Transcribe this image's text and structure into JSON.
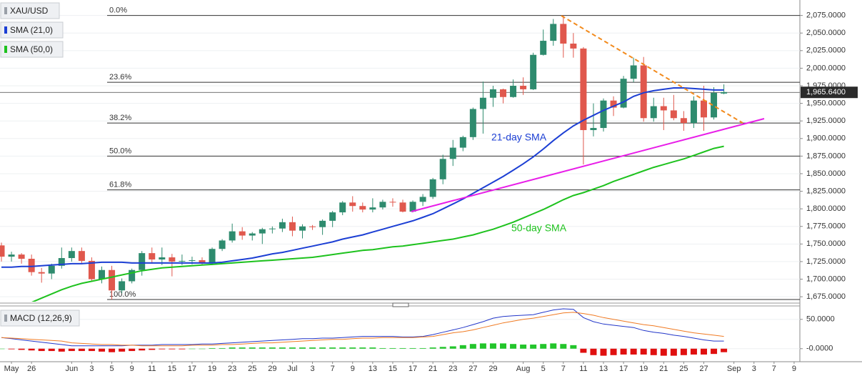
{
  "legend_items": [
    "XAU/USD",
    "SMA (21,0)",
    "SMA (50,0)"
  ],
  "chart_data": [
    {
      "type": "candlestick",
      "categories": [
        null,
        "May",
        null,
        "26",
        null,
        null,
        null,
        "Jun",
        null,
        "3",
        null,
        "5",
        null,
        "9",
        null,
        "11",
        null,
        "15",
        null,
        "17",
        null,
        "19",
        null,
        "23",
        null,
        "25",
        null,
        "29",
        null,
        "Jul",
        null,
        "3",
        null,
        "7",
        null,
        "9",
        null,
        "13",
        null,
        "15",
        null,
        "17",
        null,
        "21",
        null,
        "23",
        null,
        "27",
        null,
        "29",
        null,
        null,
        "Aug",
        null,
        "5",
        null,
        "7",
        null,
        "11",
        null,
        "13",
        null,
        "17",
        null,
        "19",
        null,
        "21",
        null,
        "25",
        null,
        "27",
        null,
        null,
        "Sep",
        null,
        "3",
        null,
        "7",
        null,
        "9"
      ],
      "open": [
        1748,
        1732,
        1735,
        1729,
        1710,
        1708,
        1719,
        1730,
        1740,
        1726,
        1700,
        1713,
        1684,
        1697,
        1713,
        1737,
        1728,
        1731,
        1725,
        1726,
        1727,
        1723,
        1743,
        1755,
        1768,
        1762,
        1765,
        1771,
        1772,
        1781,
        1769,
        1775,
        1774,
        1783,
        1795,
        1809,
        1804,
        1799,
        1802,
        1810,
        1809,
        1796,
        1810,
        1817,
        1842,
        1871,
        1887,
        1902,
        1942,
        1958,
        1970,
        1959,
        1975,
        1970,
        2019,
        2039,
        2063,
        2035,
        2028,
        1912,
        1915,
        1954,
        1944,
        1985,
        2004,
        1929,
        1946,
        1940,
        1929,
        1922,
        1954,
        1930,
        1964,
        null,
        null,
        null,
        null,
        null,
        null,
        null
      ],
      "high": [
        1752,
        1739,
        1737,
        1735,
        1716,
        1722,
        1745,
        1745,
        1745,
        1731,
        1718,
        1719,
        1701,
        1715,
        1740,
        1745,
        1745,
        1736,
        1735,
        1732,
        1731,
        1745,
        1757,
        1779,
        1774,
        1767,
        1773,
        1775,
        1786,
        1789,
        1778,
        1777,
        1785,
        1797,
        1811,
        1818,
        1809,
        1815,
        1813,
        1815,
        1813,
        1812,
        1821,
        1844,
        1877,
        1898,
        1904,
        1944,
        1981,
        1975,
        1971,
        1984,
        1987,
        2022,
        2055,
        2070,
        2075,
        2050,
        2030,
        1950,
        1957,
        1960,
        1989,
        2015,
        2016,
        1958,
        1958,
        1962,
        1939,
        1960,
        1975,
        1973,
        1977,
        null,
        null,
        null,
        null,
        null,
        null,
        null
      ],
      "low": [
        1725,
        1725,
        1722,
        1705,
        1695,
        1700,
        1715,
        1725,
        1723,
        1697,
        1694,
        1671,
        1680,
        1694,
        1705,
        1722,
        1720,
        1704,
        1720,
        1721,
        1720,
        1720,
        1740,
        1752,
        1756,
        1755,
        1750,
        1765,
        1767,
        1761,
        1758,
        1770,
        1763,
        1774,
        1791,
        1796,
        1795,
        1795,
        1799,
        1803,
        1795,
        1795,
        1804,
        1814,
        1835,
        1861,
        1882,
        1898,
        1907,
        1945,
        1950,
        1958,
        1962,
        1969,
        2018,
        2032,
        2015,
        2015,
        1863,
        1903,
        1910,
        1932,
        1943,
        1980,
        1924,
        1924,
        1912,
        1926,
        1911,
        1915,
        1911,
        1927,
        1963,
        null,
        null,
        null,
        null,
        null,
        null,
        null
      ],
      "close": [
        1732,
        1735,
        1729,
        1710,
        1708,
        1719,
        1730,
        1740,
        1726,
        1700,
        1713,
        1684,
        1697,
        1713,
        1737,
        1728,
        1731,
        1725,
        1726,
        1727,
        1723,
        1743,
        1755,
        1768,
        1762,
        1765,
        1771,
        1772,
        1781,
        1769,
        1775,
        1774,
        1783,
        1795,
        1809,
        1804,
        1799,
        1802,
        1810,
        1809,
        1796,
        1810,
        1817,
        1842,
        1871,
        1887,
        1902,
        1942,
        1958,
        1970,
        1959,
        1975,
        1970,
        2019,
        2039,
        2063,
        2035,
        2028,
        1912,
        1915,
        1954,
        1944,
        1985,
        2004,
        1929,
        1946,
        1940,
        1929,
        1922,
        1954,
        1930,
        1965,
        1966,
        null,
        null,
        null,
        null,
        null,
        null,
        null
      ],
      "up_color": "#2e8b6e",
      "down_color": "#e0584d",
      "ylim": [
        1668,
        2097
      ],
      "yticks": [
        {
          "value": 2075,
          "label": "2,075.0000"
        },
        {
          "value": 2050,
          "label": "2,050.0000"
        },
        {
          "value": 2025,
          "label": "2,025.0000"
        },
        {
          "value": 2000,
          "label": "2,000.0000"
        },
        {
          "value": 1975,
          "label": "1,975.0000"
        },
        {
          "value": 1950,
          "label": "1,950.0000"
        },
        {
          "value": 1925,
          "label": "1,925.0000"
        },
        {
          "value": 1900,
          "label": "1,900.0000"
        },
        {
          "value": 1875,
          "label": "1,875.0000"
        },
        {
          "value": 1850,
          "label": "1,850.0000"
        },
        {
          "value": 1825,
          "label": "1,825.0000"
        },
        {
          "value": 1800,
          "label": "1,800.0000"
        },
        {
          "value": 1775,
          "label": "1,775.0000"
        },
        {
          "value": 1750,
          "label": "1,750.0000"
        },
        {
          "value": 1725,
          "label": "1,725.0000"
        },
        {
          "value": 1700,
          "label": "1,700.0000"
        },
        {
          "value": 1675,
          "label": "1,675.0000"
        }
      ],
      "last_price": {
        "value": 1965.64,
        "label": "1,965.6400"
      },
      "fib_levels": [
        {
          "value": 2075,
          "label": "0.0%"
        },
        {
          "value": 1980,
          "label": "23.6%"
        },
        {
          "value": 1922,
          "label": "38.2%"
        },
        {
          "value": 1875,
          "label": "50.0%"
        },
        {
          "value": 1827,
          "label": "61.8%"
        },
        {
          "value": 1671,
          "label": "100.0%"
        }
      ],
      "series": [
        {
          "name": "21-day SMA",
          "color": "#1c3fd4",
          "values": [
            1717,
            1717,
            1718,
            1718,
            1719,
            1720,
            1721,
            1722,
            1722,
            1723,
            1724,
            1724,
            1724,
            1723,
            1723,
            1723,
            1723,
            1723,
            1723,
            1723,
            1723,
            1723,
            1724,
            1726,
            1728,
            1730,
            1733,
            1736,
            1738,
            1741,
            1744,
            1747,
            1750,
            1753,
            1757,
            1760,
            1763,
            1767,
            1771,
            1775,
            1779,
            1783,
            1788,
            1793,
            1800,
            1807,
            1814,
            1822,
            1830,
            1838,
            1846,
            1855,
            1864,
            1874,
            1885,
            1897,
            1908,
            1918,
            1926,
            1933,
            1940,
            1946,
            1952,
            1960,
            1965,
            1968,
            1970,
            1972,
            1972,
            1971,
            1970,
            1969,
            1969,
            null,
            null,
            null,
            null,
            null,
            null,
            null
          ]
        },
        {
          "name": "50-day SMA",
          "color": "#1ec21e",
          "values": [
            null,
            null,
            1662,
            1667,
            1673,
            1679,
            1685,
            1690,
            1694,
            1697,
            1700,
            1703,
            1706,
            1709,
            1712,
            1714,
            1716,
            1717,
            1718,
            1719,
            1720,
            1721,
            1722,
            1723,
            1724,
            1725,
            1726,
            1727,
            1728,
            1729,
            1730,
            1731,
            1733,
            1735,
            1737,
            1739,
            1741,
            1742,
            1744,
            1746,
            1747,
            1749,
            1751,
            1753,
            1755,
            1757,
            1760,
            1763,
            1767,
            1771,
            1776,
            1781,
            1787,
            1793,
            1799,
            1806,
            1813,
            1819,
            1823,
            1828,
            1833,
            1839,
            1844,
            1849,
            1854,
            1859,
            1863,
            1867,
            1871,
            1876,
            1881,
            1886,
            1889,
            null,
            null,
            null,
            null,
            null,
            null,
            null
          ]
        }
      ]
    },
    {
      "type": "macd",
      "title": "MACD (12,26,9)",
      "ylim": [
        -21,
        68
      ],
      "yticks": [
        {
          "value": 50,
          "label": "50.0000"
        },
        {
          "value": 0,
          "label": "-0.0000"
        }
      ],
      "series": [
        {
          "color": "#2236c9",
          "values": [
            19,
            17,
            15,
            13,
            11,
            9,
            7,
            5,
            5,
            5,
            5,
            5,
            5,
            6,
            6,
            6,
            7,
            7,
            7,
            7,
            8,
            8,
            9,
            10,
            11,
            12,
            13,
            14,
            15,
            16,
            17,
            17,
            18,
            18,
            19,
            20,
            21,
            21,
            21,
            21,
            20,
            20,
            21,
            24,
            28,
            32,
            36,
            41,
            46,
            52,
            55,
            56,
            57,
            58,
            62,
            66,
            68,
            67,
            53,
            46,
            42,
            40,
            38,
            36,
            31,
            28,
            26,
            23,
            21,
            18,
            15,
            13,
            13,
            null,
            null,
            null,
            null,
            null,
            null,
            null
          ]
        },
        {
          "color": "#f07a22",
          "values": [
            19,
            18,
            17,
            16,
            15,
            14,
            13,
            10,
            9,
            8,
            7,
            7,
            6,
            6,
            5,
            5,
            5,
            5,
            5,
            6,
            6,
            6,
            7,
            7,
            8,
            9,
            10,
            10,
            11,
            12,
            13,
            14,
            15,
            16,
            16,
            17,
            18,
            18,
            19,
            19,
            19,
            19,
            20,
            21,
            24,
            27,
            29,
            32,
            36,
            40,
            44,
            47,
            50,
            52,
            55,
            58,
            61,
            62,
            60,
            57,
            53,
            50,
            47,
            44,
            41,
            39,
            36,
            33,
            30,
            27,
            25,
            23,
            21,
            null,
            null,
            null,
            null,
            null,
            null,
            null
          ]
        }
      ],
      "histogram": {
        "up_color": "#22c52a",
        "down_color": "#e01010",
        "values": [
          0,
          -1,
          -2,
          -3,
          -4,
          -4,
          -5,
          -4,
          -4,
          -4,
          -5,
          -6,
          -5,
          -4,
          -3,
          -2,
          -1,
          -1,
          -1,
          0,
          0,
          1,
          1,
          2,
          2,
          2,
          2,
          2,
          2,
          2,
          2,
          2,
          2,
          2,
          2,
          2,
          2,
          2,
          1,
          1,
          1,
          1,
          1,
          2,
          3,
          4,
          6,
          8,
          9,
          9,
          9,
          8,
          7,
          7,
          8,
          9,
          8,
          6,
          -7,
          -11,
          -12,
          -11,
          -10,
          -10,
          -10,
          -11,
          -12,
          -12,
          -11,
          -10,
          -10,
          -9,
          -6,
          null,
          null,
          null,
          null,
          null,
          null,
          null
        ]
      }
    }
  ]
}
